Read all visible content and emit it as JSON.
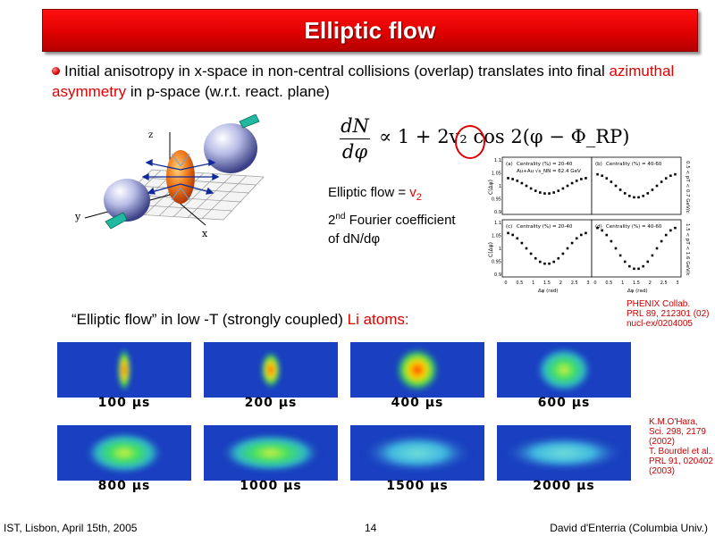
{
  "title": "Elliptic flow",
  "intro": {
    "text_before": "Initial anisotropy in x-space in non-central collisions (overlap) translates into final ",
    "highlight": "azimuthal asymmetry",
    "text_after": " in p-space (w.r.t. react. plane)"
  },
  "formula": {
    "numerator": "dN",
    "denominator": "dφ",
    "rest": "∝ 1 + 2v₂ cos 2(φ − Φ_RP)"
  },
  "collision_diagram": {
    "axis_labels": {
      "z": "z",
      "y": "y",
      "x": "x"
    }
  },
  "elliptic_text": {
    "line1_prefix": "Elliptic flow = ",
    "line1_v": "v",
    "line1_sub": "2",
    "line2_sup": "nd",
    "line2_num": "2",
    "line2_rest": "  Fourier coefficient",
    "line3": "of dN/dφ"
  },
  "phenix_plot": {
    "panels": [
      {
        "id": "(a)",
        "label": "Centrality (%) = 20-40",
        "sub": "Au+Au √s_NN = 62.4 GeV"
      },
      {
        "id": "(b)",
        "label": "Centrality (%) = 40-60"
      },
      {
        "id": "(c)",
        "label": "Centrality (%) = 20-40"
      },
      {
        "id": "(d)",
        "label": "Centrality (%) = 40-60"
      }
    ],
    "ylabel": "C(Δφ)",
    "xlabel": "Δφ (rad)",
    "right_labels": [
      "0.5 < pT < 0.7 GeV/c",
      "1.5 < pT < 1.6 GeV/c"
    ],
    "yticks": [
      "1.1",
      "1.05",
      "1",
      "0.95",
      "0.9"
    ],
    "xticks": [
      "0",
      "0.5",
      "1",
      "1.5",
      "2",
      "2.5",
      "3"
    ]
  },
  "phenix_ref": [
    "PHENIX Collab.",
    "PRL 89, 212301 (02)",
    "nucl-ex/0204005"
  ],
  "li_label": {
    "prefix": "“Elliptic flow” in low -T (strongly coupled) ",
    "highlight": "Li atoms:"
  },
  "frames": [
    {
      "caption": "100 µs"
    },
    {
      "caption": "200 µs"
    },
    {
      "caption": "400 µs"
    },
    {
      "caption": "600 µs"
    },
    {
      "caption": "800 µs"
    },
    {
      "caption": "1000 µs"
    },
    {
      "caption": "1500 µs"
    },
    {
      "caption": "2000 µs"
    }
  ],
  "kmo_ref": [
    "K.M.O'Hara,",
    "Sci. 298, 2179",
    "(2002)",
    "T. Bourdel et al.",
    "PRL 91, 020402",
    "(2003)"
  ],
  "footer": {
    "left": "IST, Lisbon, April 15th, 2005",
    "page": "14",
    "right": "David d'Enterria (Columbia Univ.)"
  },
  "colors": {
    "accent_red": "#e00000",
    "frame_background": "#1a3fc0"
  }
}
